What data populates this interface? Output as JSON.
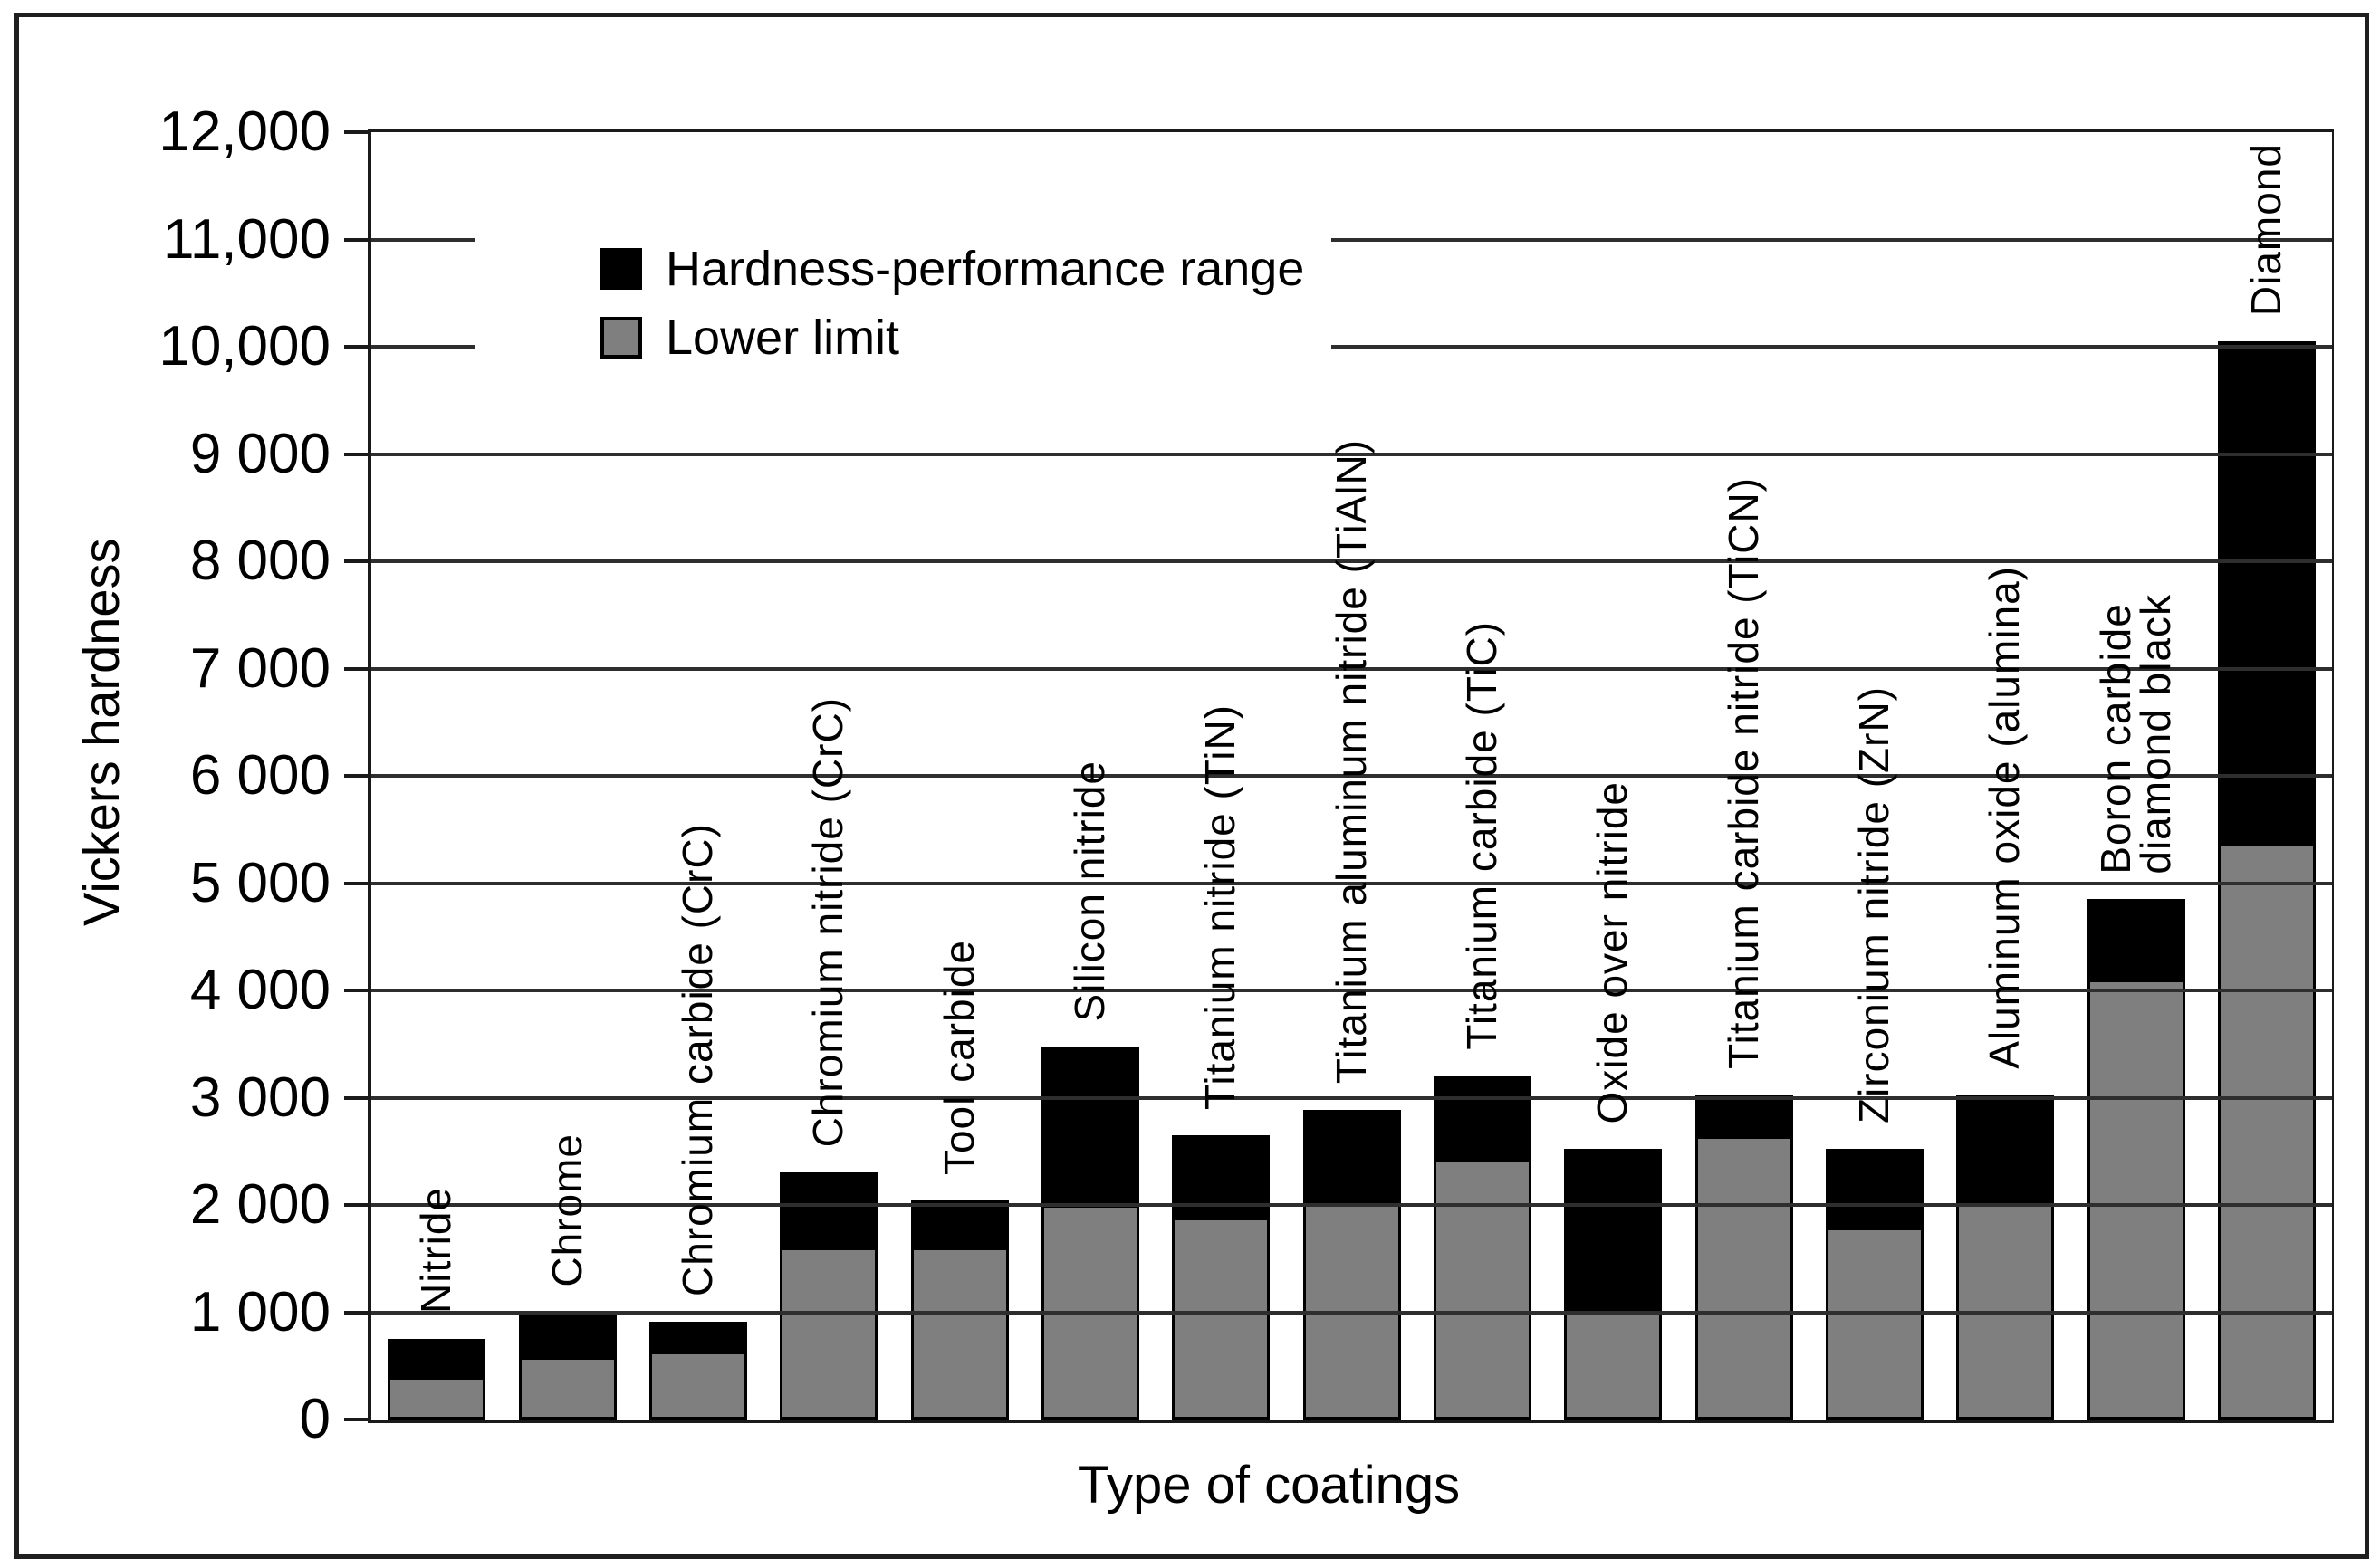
{
  "chart_data": {
    "type": "bar",
    "stacked": true,
    "title": "",
    "xlabel": "Type of coatings",
    "ylabel": "Vickers hardness",
    "ylim": [
      0,
      12000
    ],
    "grid": true,
    "legend_position": "top-left-inside",
    "bar_colors": {
      "lower": "#7f7f7f",
      "range": "#000000"
    },
    "y_ticks": [
      {
        "value": 0,
        "label": "0"
      },
      {
        "value": 1000,
        "label": "1 000"
      },
      {
        "value": 2000,
        "label": "2 000"
      },
      {
        "value": 3000,
        "label": "3 000"
      },
      {
        "value": 4000,
        "label": "4 000"
      },
      {
        "value": 5000,
        "label": "5 000"
      },
      {
        "value": 6000,
        "label": "6 000"
      },
      {
        "value": 7000,
        "label": "7 000"
      },
      {
        "value": 8000,
        "label": "8 000"
      },
      {
        "value": 9000,
        "label": "9 000"
      },
      {
        "value": 10000,
        "label": "10,000"
      },
      {
        "value": 11000,
        "label": "11,000"
      },
      {
        "value": 12000,
        "label": "12,000"
      }
    ],
    "legend": [
      {
        "name": "Hardness-performance range",
        "color": "#000000"
      },
      {
        "name": "Lower limit",
        "color": "#7f7f7f"
      }
    ],
    "categories": [
      {
        "label_lines": [
          "Nitride"
        ],
        "lower": 400,
        "upper": 750
      },
      {
        "label_lines": [
          "Chrome"
        ],
        "lower": 580,
        "upper": 1000
      },
      {
        "label_lines": [
          "Chromium carbide (CrC)"
        ],
        "lower": 630,
        "upper": 910
      },
      {
        "label_lines": [
          "Chromium nitride (CrC)"
        ],
        "lower": 1600,
        "upper": 2300
      },
      {
        "label_lines": [
          "Tool carbide"
        ],
        "lower": 1600,
        "upper": 2040
      },
      {
        "label_lines": [
          "Silicon nitride"
        ],
        "lower": 2000,
        "upper": 3470
      },
      {
        "label_lines": [
          "Titanium nitride (TiN)"
        ],
        "lower": 1880,
        "upper": 2650
      },
      {
        "label_lines": [
          "Titanium aluminum nitride (TiAlN)"
        ],
        "lower": 2010,
        "upper": 2890
      },
      {
        "label_lines": [
          "Titanium carbide (TiC)"
        ],
        "lower": 2430,
        "upper": 3210
      },
      {
        "label_lines": [
          "Oxide over nitride"
        ],
        "lower": 1030,
        "upper": 2520
      },
      {
        "label_lines": [
          "Titanium carbide nitride (TiCN)"
        ],
        "lower": 2640,
        "upper": 3030
      },
      {
        "label_lines": [
          "Zirconium nitride (ZrN)"
        ],
        "lower": 1790,
        "upper": 2520
      },
      {
        "label_lines": [
          "Aluminum oxide (alumina)"
        ],
        "lower": 2020,
        "upper": 3030
      },
      {
        "label_lines": [
          "Boron carbide",
          "diamond black"
        ],
        "lower": 4100,
        "upper": 4850
      },
      {
        "label_lines": [
          "Diamond"
        ],
        "lower": 5370,
        "upper": 10050
      }
    ],
    "series": [
      {
        "name": "Lower limit",
        "values": [
          400,
          580,
          630,
          1600,
          1600,
          2000,
          1880,
          2010,
          2430,
          1030,
          2640,
          1790,
          2020,
          4100,
          5370
        ]
      },
      {
        "name": "Hardness-performance range (upper value)",
        "values": [
          750,
          1000,
          910,
          2300,
          2040,
          3470,
          2650,
          2890,
          3210,
          2520,
          3030,
          2520,
          3030,
          4850,
          10050
        ]
      }
    ]
  }
}
